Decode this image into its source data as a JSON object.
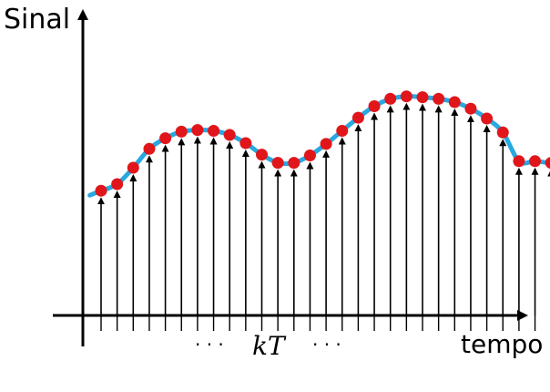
{
  "diagram": {
    "y_axis_label": "Sinal",
    "x_axis_label": "tempo",
    "center_label": "kT",
    "ellipsis_left": "· · ·",
    "ellipsis_right": "· · ·"
  },
  "colors": {
    "axis": "#000000",
    "curve": "#29a8e0",
    "sample_marker": "#e0161b",
    "stem": "#000000"
  },
  "chart_data": {
    "type": "scatter",
    "description_visible": "sampled continuous signal with impulse stems at regular intervals",
    "x": [
      1,
      2,
      3,
      4,
      5,
      6,
      7,
      8,
      9,
      10,
      11,
      12,
      13,
      14,
      15,
      16,
      17,
      18,
      19,
      20,
      21,
      22,
      23,
      24,
      25,
      26,
      27,
      28,
      29,
      30
    ],
    "values": [
      1.52,
      1.6,
      1.8,
      2.03,
      2.16,
      2.24,
      2.26,
      2.25,
      2.2,
      2.1,
      1.96,
      1.86,
      1.86,
      1.95,
      2.09,
      2.25,
      2.41,
      2.55,
      2.64,
      2.67,
      2.66,
      2.64,
      2.6,
      2.52,
      2.4,
      2.23,
      1.88,
      1.88,
      1.86,
      1.88
    ],
    "ylim": [
      0,
      3.0
    ],
    "xlabel": "tempo",
    "ylabel": "Sinal",
    "grid": false,
    "legend": "none"
  }
}
